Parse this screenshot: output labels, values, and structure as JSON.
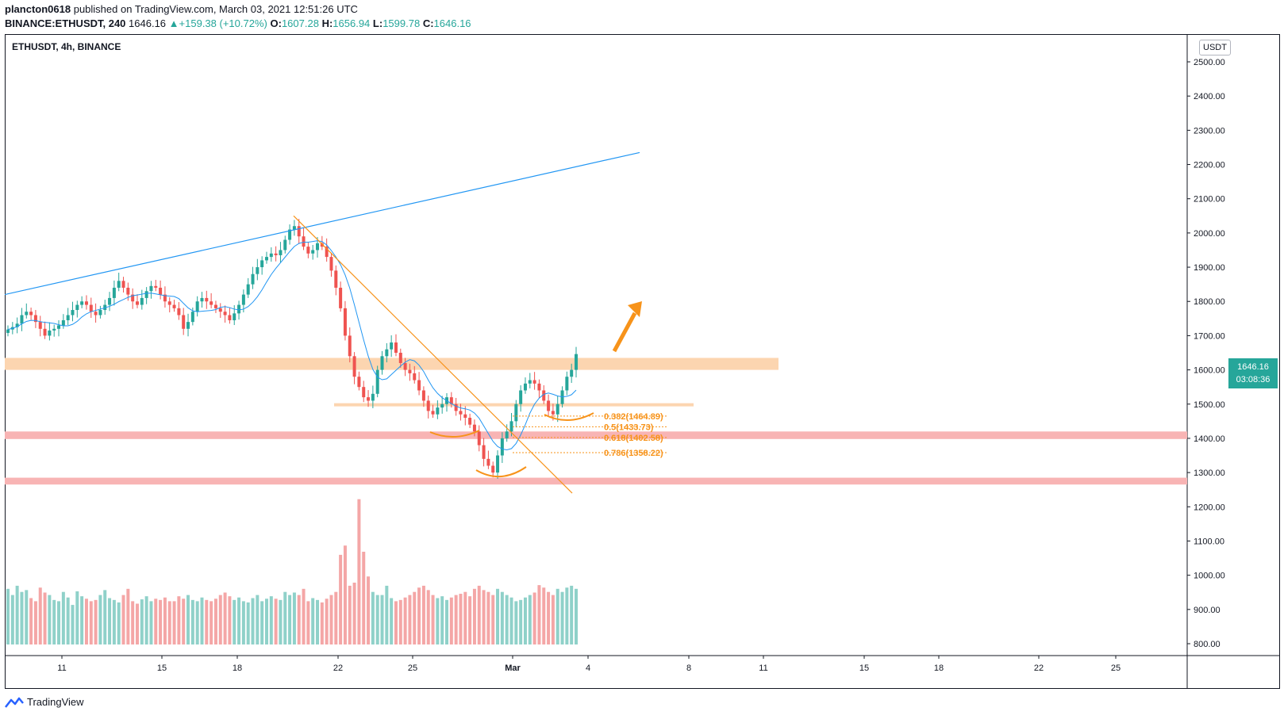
{
  "header": {
    "author": "plancton0618",
    "published_text": "published on TradingView.com, March 03, 2021 12:51:26 UTC",
    "symbol_full": "BINANCE:ETHUSDT, 240",
    "last": "1646.16",
    "change": "▲+159.38 (+10.72%)",
    "open_label": "O:",
    "open": "1607.28",
    "high_label": "H:",
    "high": "1656.94",
    "low_label": "L:",
    "low": "1599.78",
    "close_label": "C:",
    "close": "1646.16"
  },
  "chart_title": "ETHUSDT, 4h, BINANCE",
  "unit": "USDT",
  "price_tag": {
    "value": "1646.16",
    "countdown": "03:08:36"
  },
  "footer": {
    "brand": "TradingView"
  },
  "colors": {
    "up": "#26a69a",
    "down": "#ef5350",
    "ma": "#2196f3",
    "trend": "#2196f3",
    "down_trend": "#f7931a",
    "resistance_zone": "#fcd5b0",
    "support_zone": "#f8b4b4",
    "fib": "#f7931a"
  },
  "chart_data": {
    "type": "candlestick",
    "title": "ETHUSDT, 4h, BINANCE",
    "ylabel": "USDT",
    "ylim": [
      780,
      2550
    ],
    "y_ticks": [
      "2500.00",
      "2400.00",
      "2300.00",
      "2200.00",
      "2100.00",
      "2000.00",
      "1900.00",
      "1800.00",
      "1700.00",
      "1600.00",
      "1500.00",
      "1400.00",
      "1300.00",
      "1200.00",
      "1100.00",
      "1000.00",
      "900.00",
      "800.00"
    ],
    "x_ticks": [
      "11",
      "15",
      "18",
      "22",
      "25",
      "Mar",
      "4",
      "8",
      "11",
      "15",
      "18",
      "22",
      "25"
    ],
    "candles_close": [
      1718,
      1725,
      1735,
      1760,
      1770,
      1760,
      1740,
      1720,
      1700,
      1715,
      1720,
      1730,
      1745,
      1760,
      1775,
      1790,
      1800,
      1790,
      1770,
      1760,
      1775,
      1790,
      1810,
      1840,
      1860,
      1840,
      1820,
      1800,
      1790,
      1810,
      1830,
      1845,
      1840,
      1820,
      1800,
      1790,
      1780,
      1760,
      1720,
      1740,
      1770,
      1800,
      1810,
      1800,
      1790,
      1780,
      1770,
      1760,
      1745,
      1765,
      1790,
      1820,
      1850,
      1880,
      1900,
      1920,
      1930,
      1940,
      1935,
      1950,
      1980,
      2010,
      2020,
      1990,
      1960,
      1940,
      1950,
      1970,
      1960,
      1930,
      1890,
      1840,
      1780,
      1700,
      1640,
      1580,
      1550,
      1520,
      1510,
      1530,
      1600,
      1640,
      1660,
      1680,
      1650,
      1620,
      1600,
      1590,
      1570,
      1540,
      1510,
      1480,
      1470,
      1490,
      1500,
      1520,
      1500,
      1480,
      1470,
      1460,
      1440,
      1420,
      1380,
      1340,
      1320,
      1300,
      1350,
      1400,
      1420,
      1450,
      1500,
      1540,
      1560,
      1570,
      1560,
      1540,
      1510,
      1480,
      1470,
      1500,
      1540,
      1580,
      1600,
      1646.16
    ],
    "moving_average_label": "",
    "annotations": {
      "fib_levels": [
        {
          "label": "0.382(1464.89)",
          "price": 1464.89
        },
        {
          "label": "0.5(1433.73)",
          "price": 1433.73
        },
        {
          "label": "0.618(1402.58)",
          "price": 1402.58
        },
        {
          "label": "0.786(1358.22)",
          "price": 1358.22
        }
      ],
      "resistance_zone": [
        1600,
        1635
      ],
      "support_zones": [
        [
          1398,
          1420
        ],
        [
          1265,
          1285
        ]
      ],
      "horizontal_line": 1498,
      "rising_trendline": [
        1820,
        2235
      ],
      "falling_trendline": [
        2050,
        1240
      ]
    },
    "volume": [
      90,
      80,
      95,
      85,
      88,
      75,
      70,
      92,
      84,
      80,
      72,
      70,
      85,
      76,
      64,
      86,
      78,
      74,
      70,
      72,
      80,
      88,
      75,
      72,
      68,
      80,
      90,
      70,
      66,
      73,
      78,
      70,
      74,
      72,
      76,
      70,
      70,
      78,
      74,
      80,
      72,
      70,
      76,
      72,
      70,
      74,
      80,
      84,
      78,
      72,
      76,
      70,
      68,
      75,
      80,
      70,
      74,
      78,
      74,
      72,
      85,
      80,
      84,
      80,
      90,
      70,
      75,
      72,
      68,
      74,
      80,
      85,
      145,
      160,
      95,
      100,
      235,
      150,
      110,
      85,
      80,
      80,
      95,
      75,
      70,
      72,
      76,
      80,
      85,
      92,
      95,
      88,
      80,
      75,
      78,
      72,
      76,
      80,
      82,
      85,
      78,
      90,
      95,
      88,
      85,
      80,
      90,
      85,
      80,
      76,
      70,
      72,
      76,
      80,
      84,
      96,
      92,
      85,
      80,
      90,
      85,
      92,
      95,
      90
    ]
  }
}
